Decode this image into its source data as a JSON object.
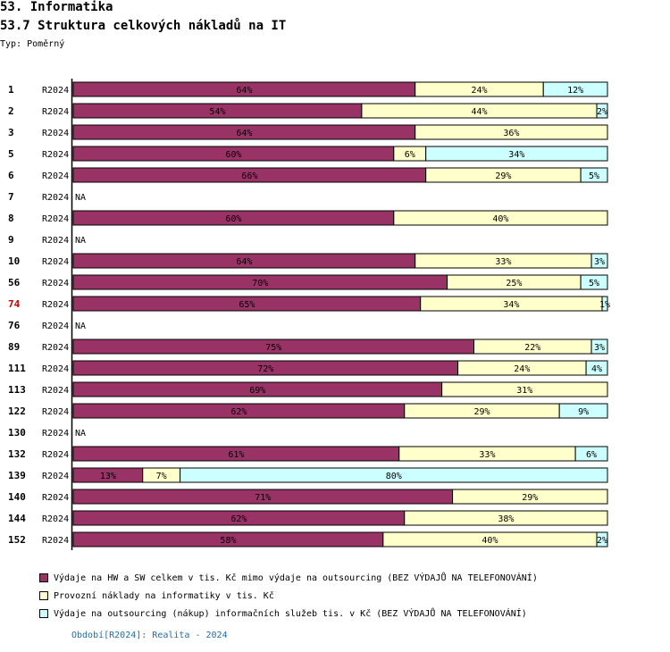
{
  "header": {
    "title": "53. Informatika",
    "subtitle": "53.7 Struktura celkových nákladů na IT",
    "type_label": "Typ: Poměrný"
  },
  "colors": {
    "series1": "#993366",
    "series2": "#ffffcc",
    "series3": "#ccffff",
    "highlight_label": "#cc0000"
  },
  "legend": {
    "items": [
      "Výdaje na HW a SW celkem v tis. Kč mimo výdaje na outsourcing (BEZ VÝDAJŮ NA TELEFONOVÁNÍ)",
      "Provozní náklady na informatiky v tis. Kč",
      "Výdaje na outsourcing (nákup) informačních služeb tis. v Kč (BEZ VÝDAJŮ NA TELEFONOVÁNÍ)"
    ]
  },
  "footer": {
    "period": "Období[R2024]: Realita - 2024"
  },
  "chart_data": {
    "type": "bar",
    "orientation": "horizontal",
    "stacked": "percent",
    "title": "53.7 Struktura celkových nákladů na IT",
    "xlim": [
      0,
      100
    ],
    "series_names": [
      "Výdaje na HW a SW celkem v tis. Kč mimo výdaje na outsourcing (BEZ VÝDAJŮ NA TELEFONOVÁNÍ)",
      "Provozní náklady na informatiky v tis. Kč",
      "Výdaje na outsourcing (nákup) informačních služeb tis. v Kč (BEZ VÝDAJŮ NA TELEFONOVÁNÍ)"
    ],
    "rows": [
      {
        "id": "1",
        "period": "R2024",
        "values": [
          64,
          24,
          12
        ],
        "labels": [
          "64%",
          "24%",
          "12%"
        ]
      },
      {
        "id": "2",
        "period": "R2024",
        "values": [
          54,
          44,
          2
        ],
        "labels": [
          "54%",
          "44%",
          "2%"
        ]
      },
      {
        "id": "3",
        "period": "R2024",
        "values": [
          64,
          36,
          0
        ],
        "labels": [
          "64%",
          "36%",
          ""
        ]
      },
      {
        "id": "5",
        "period": "R2024",
        "values": [
          60,
          6,
          34
        ],
        "labels": [
          "60%",
          "6%",
          "34%"
        ]
      },
      {
        "id": "6",
        "period": "R2024",
        "values": [
          66,
          29,
          5
        ],
        "labels": [
          "66%",
          "29%",
          "5%"
        ]
      },
      {
        "id": "7",
        "period": "R2024",
        "na": "NA"
      },
      {
        "id": "8",
        "period": "R2024",
        "values": [
          60,
          40,
          0
        ],
        "labels": [
          "60%",
          "40%",
          ""
        ]
      },
      {
        "id": "9",
        "period": "R2024",
        "na": "NA"
      },
      {
        "id": "10",
        "period": "R2024",
        "values": [
          64,
          33,
          3
        ],
        "labels": [
          "64%",
          "33%",
          "3%"
        ]
      },
      {
        "id": "56",
        "period": "R2024",
        "values": [
          70,
          25,
          5
        ],
        "labels": [
          "70%",
          "25%",
          "5%"
        ]
      },
      {
        "id": "74",
        "period": "R2024",
        "values": [
          65,
          34,
          1
        ],
        "labels": [
          "65%",
          "34%",
          "1%"
        ],
        "highlight": true
      },
      {
        "id": "76",
        "period": "R2024",
        "na": "NA"
      },
      {
        "id": "89",
        "period": "R2024",
        "values": [
          75,
          22,
          3
        ],
        "labels": [
          "75%",
          "22%",
          "3%"
        ]
      },
      {
        "id": "111",
        "period": "R2024",
        "values": [
          72,
          24,
          4
        ],
        "labels": [
          "72%",
          "24%",
          "4%"
        ]
      },
      {
        "id": "113",
        "period": "R2024",
        "values": [
          69,
          31,
          0
        ],
        "labels": [
          "69%",
          "31%",
          ""
        ]
      },
      {
        "id": "122",
        "period": "R2024",
        "values": [
          62,
          29,
          9
        ],
        "labels": [
          "62%",
          "29%",
          "9%"
        ]
      },
      {
        "id": "130",
        "period": "R2024",
        "na": "NA"
      },
      {
        "id": "132",
        "period": "R2024",
        "values": [
          61,
          33,
          6
        ],
        "labels": [
          "61%",
          "33%",
          "6%"
        ]
      },
      {
        "id": "139",
        "period": "R2024",
        "values": [
          13,
          7,
          80
        ],
        "labels": [
          "13%",
          "7%",
          "80%"
        ]
      },
      {
        "id": "140",
        "period": "R2024",
        "values": [
          71,
          29,
          0
        ],
        "labels": [
          "71%",
          "29%",
          ""
        ]
      },
      {
        "id": "144",
        "period": "R2024",
        "values": [
          62,
          38,
          0
        ],
        "labels": [
          "62%",
          "38%",
          ""
        ]
      },
      {
        "id": "152",
        "period": "R2024",
        "values": [
          58,
          40,
          2
        ],
        "labels": [
          "58%",
          "40%",
          "2%"
        ]
      }
    ]
  }
}
